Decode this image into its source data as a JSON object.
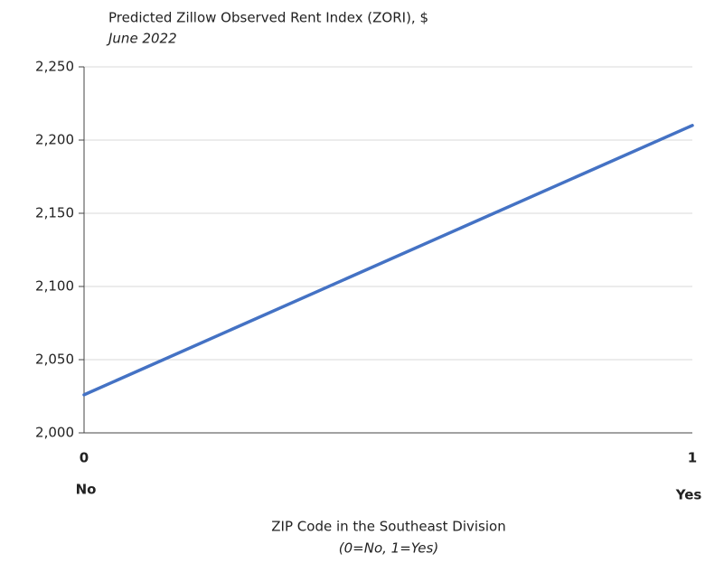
{
  "chart_data": {
    "type": "line",
    "title": "Predicted Zillow Observed Rent Index (ZORI), $",
    "subtitle": "June 2022",
    "x": [
      0,
      1
    ],
    "x_tick_sublabels": [
      "No",
      "Yes"
    ],
    "x_label": "ZIP Code in the Southeast Division",
    "x_label_note": "(0=No, 1=Yes)",
    "series": [
      {
        "color": "#4472c4",
        "values": [
          2026,
          2210
        ]
      }
    ],
    "xlim": [
      0,
      1
    ],
    "xticks": [
      0,
      1
    ],
    "ylim": [
      2000,
      2250
    ],
    "yticks": [
      {
        "value": 2000,
        "label": "2,000"
      },
      {
        "value": 2050,
        "label": "2,050"
      },
      {
        "value": 2100,
        "label": "2,100"
      },
      {
        "value": 2150,
        "label": "2,150"
      },
      {
        "value": 2200,
        "label": "2,200"
      },
      {
        "value": 2250,
        "label": "2,250"
      }
    ],
    "grid": true
  }
}
